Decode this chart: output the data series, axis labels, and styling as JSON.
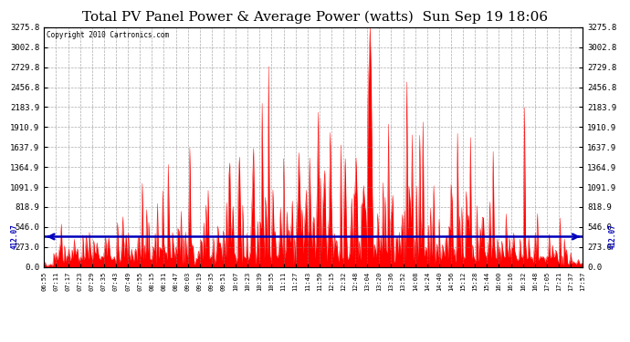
{
  "title": "Total PV Panel Power & Average Power (watts)  Sun Sep 19 18:06",
  "copyright": "Copyright 2010 Cartronics.com",
  "avg_line_value": 412.07,
  "avg_label": "412.07",
  "y_max": 3275.8,
  "y_ticks": [
    0.0,
    273.0,
    546.0,
    818.9,
    1091.9,
    1364.9,
    1637.9,
    1910.9,
    2183.9,
    2456.8,
    2729.8,
    3002.8,
    3275.8
  ],
  "fill_color": "#ff0000",
  "line_color": "#ff0000",
  "avg_line_color": "#0000bb",
  "background_color": "#ffffff",
  "grid_color": "#888888",
  "title_fontsize": 11,
  "x_tick_labels": [
    "06:55",
    "07:11",
    "07:17",
    "07:23",
    "07:29",
    "07:35",
    "07:43",
    "07:49",
    "07:55",
    "08:15",
    "08:31",
    "08:47",
    "09:03",
    "09:19",
    "09:35",
    "09:51",
    "10:07",
    "10:23",
    "10:39",
    "10:55",
    "11:11",
    "11:27",
    "11:43",
    "11:59",
    "12:15",
    "12:32",
    "12:48",
    "13:04",
    "13:20",
    "13:36",
    "13:52",
    "14:08",
    "14:24",
    "14:40",
    "14:56",
    "15:12",
    "15:28",
    "15:44",
    "16:00",
    "16:16",
    "16:32",
    "16:48",
    "17:05",
    "17:21",
    "17:37",
    "17:57"
  ]
}
